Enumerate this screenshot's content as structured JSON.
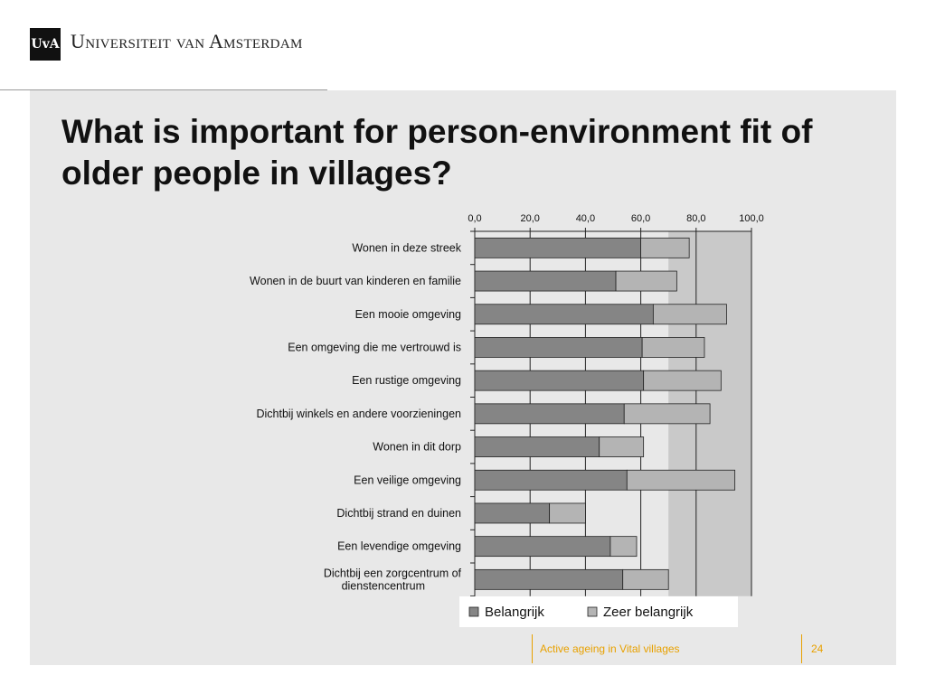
{
  "header": {
    "logo_label": "UvA",
    "university_name": "Universiteit van Amsterdam"
  },
  "slide": {
    "title": "What is important for person-environment fit of older people in villages?"
  },
  "footer": {
    "label": "Active ageing in Vital villages",
    "page": "24"
  },
  "colors": {
    "belangrijk": "#858585",
    "zeer_belangrijk": "#b4b4b4",
    "plot_band": "#c9c9c9",
    "footer_accent": "#e8a100"
  },
  "chart_data": {
    "type": "bar",
    "orientation": "horizontal",
    "stacked": true,
    "categories": [
      "Wonen in deze streek",
      "Wonen in de buurt van kinderen en familie",
      "Een mooie omgeving",
      "Een omgeving die me vertrouwd is",
      "Een rustige omgeving",
      "Dichtbij winkels en andere voorzieningen",
      "Wonen in dit dorp",
      "Een veilige omgeving",
      "Dichtbij strand en duinen",
      "Een levendige omgeving",
      "Dichtbij een zorgcentrum of dienstencentrum"
    ],
    "series": [
      {
        "name": "Belangrijk",
        "values": [
          60.0,
          51.0,
          64.5,
          60.5,
          61.0,
          54.0,
          45.0,
          55.0,
          27.0,
          49.0,
          53.5
        ]
      },
      {
        "name": "Zeer belangrijk",
        "values": [
          17.5,
          22.0,
          26.5,
          22.5,
          28.0,
          31.0,
          16.0,
          39.0,
          13.0,
          9.5,
          16.5
        ]
      }
    ],
    "x_ticks": [
      "0,0",
      "20,0",
      "40,0",
      "60,0",
      "80,0",
      "100,0"
    ],
    "xlim": [
      0,
      100
    ],
    "x_axis_position": "top",
    "legend_position": "bottom",
    "grid": true
  }
}
